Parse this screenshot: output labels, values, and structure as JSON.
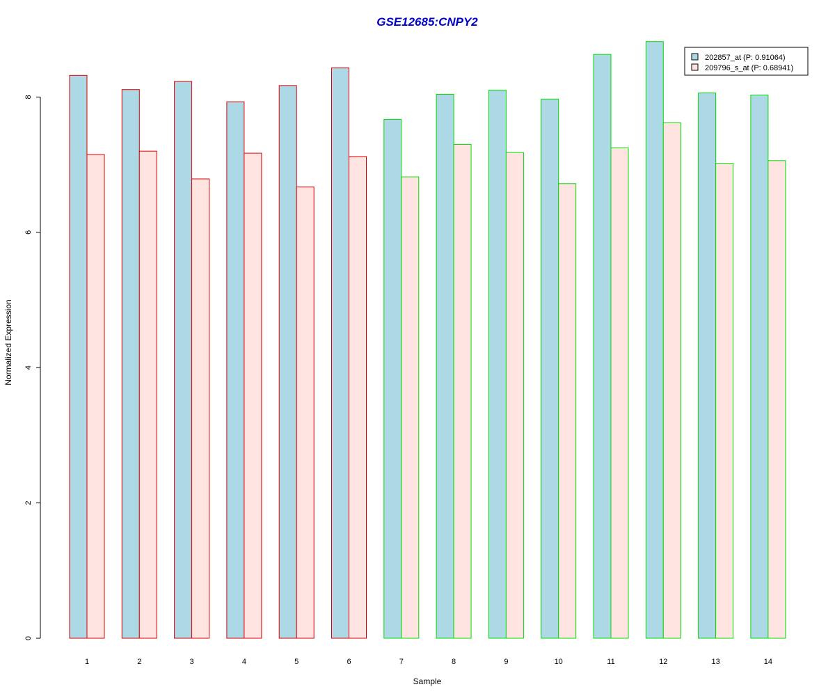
{
  "chart_data": {
    "type": "bar",
    "title": "GSE12685:CNPY2",
    "xlabel": "Sample",
    "ylabel": "Normalized Expression",
    "ylim": [
      0,
      8.8
    ],
    "yticks": [
      "0",
      "2",
      "4",
      "6",
      "8"
    ],
    "categories": [
      "1",
      "2",
      "3",
      "4",
      "5",
      "6",
      "7",
      "8",
      "9",
      "10",
      "11",
      "12",
      "13",
      "14"
    ],
    "series": [
      {
        "name": "202857_at (P: 0.91064)",
        "fill": "#add8e6",
        "values": [
          8.32,
          8.11,
          8.23,
          7.93,
          8.17,
          8.43,
          7.67,
          8.04,
          8.1,
          7.97,
          8.63,
          8.82,
          8.06,
          8.03
        ]
      },
      {
        "name": "209796_s_at (P: 0.68941)",
        "fill": "#ffe4e1",
        "values": [
          7.15,
          7.2,
          6.79,
          7.17,
          6.67,
          7.12,
          6.82,
          7.3,
          7.18,
          6.72,
          7.25,
          7.62,
          7.02,
          7.06
        ]
      }
    ],
    "group_border_colors": [
      "#dd0000",
      "#dd0000",
      "#dd0000",
      "#dd0000",
      "#dd0000",
      "#dd0000",
      "#00dd00",
      "#00dd00",
      "#00dd00",
      "#00dd00",
      "#00dd00",
      "#00dd00",
      "#00dd00",
      "#00dd00"
    ],
    "legend_position": "top-right",
    "grid": false
  }
}
